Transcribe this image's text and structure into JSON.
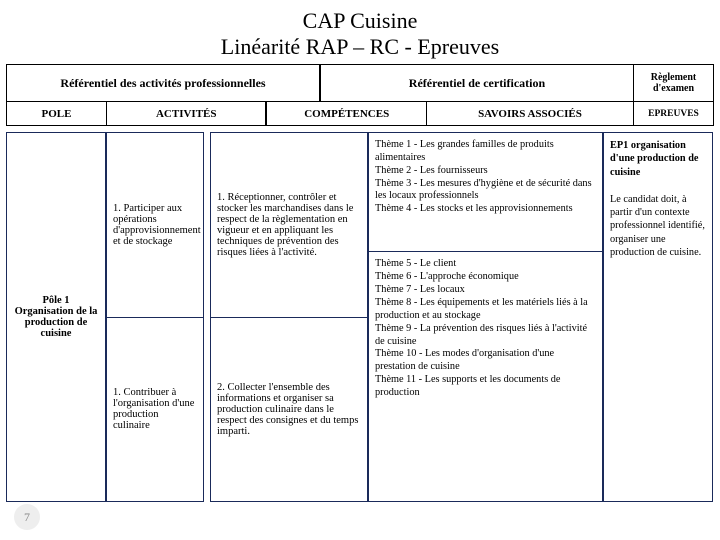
{
  "title_line1": "CAP Cuisine",
  "title_line2": "Linéarité RAP – RC - Epreuves",
  "header": {
    "left": "Référentiel des activités professionnelles",
    "right": "Référentiel de certification",
    "reglement": "Règlement d'examen"
  },
  "sub": {
    "pole": "POLE",
    "act": "ACTIVITÉS",
    "comp": "COMPÉTENCES",
    "sav": "SAVOIRS ASSOCIÉS",
    "ep": "EPREUVES"
  },
  "pole": "Pôle 1\nOrganisation de la production de cuisine",
  "act1": "1. Participer aux opérations d'approvisionnement et de stockage",
  "act2": "1. Contribuer à l'organisation d'une production culinaire",
  "comp1": "1. Réceptionner, contrôler et stocker les marchandises dans le respect de la règlementation en vigueur et en appliquant les techniques de prévention des risques liées à l'activité.",
  "comp2": "2. Collecter l'ensemble des informations et organiser sa production culinaire dans le respect des consignes et du temps imparti.",
  "sav1": "Thème 1 - Les grandes familles de produits alimentaires\nThème 2 - Les fournisseurs\nThème 3 - Les mesures d'hygiène et de sécurité dans les locaux professionnels\nThème 4 - Les stocks et les approvisionnements",
  "sav2": "Thème 5 - Le client\nThème 6 - L'approche économique\nThème 7 - Les locaux\nThème 8 - Les équipements et les matériels liés à la production et au stockage\nThème 9 - La prévention des risques liés à l'activité de cuisine\nThème 10 - Les modes d'organisation d'une prestation de cuisine\nThème 11 - Les supports et les documents de production",
  "ep_title": "EP1 organisation d'une production de cuisine",
  "ep_body": "Le candidat doit, à partir d'un contexte professionnel identifié, organiser une production de cuisine.",
  "page": "7"
}
